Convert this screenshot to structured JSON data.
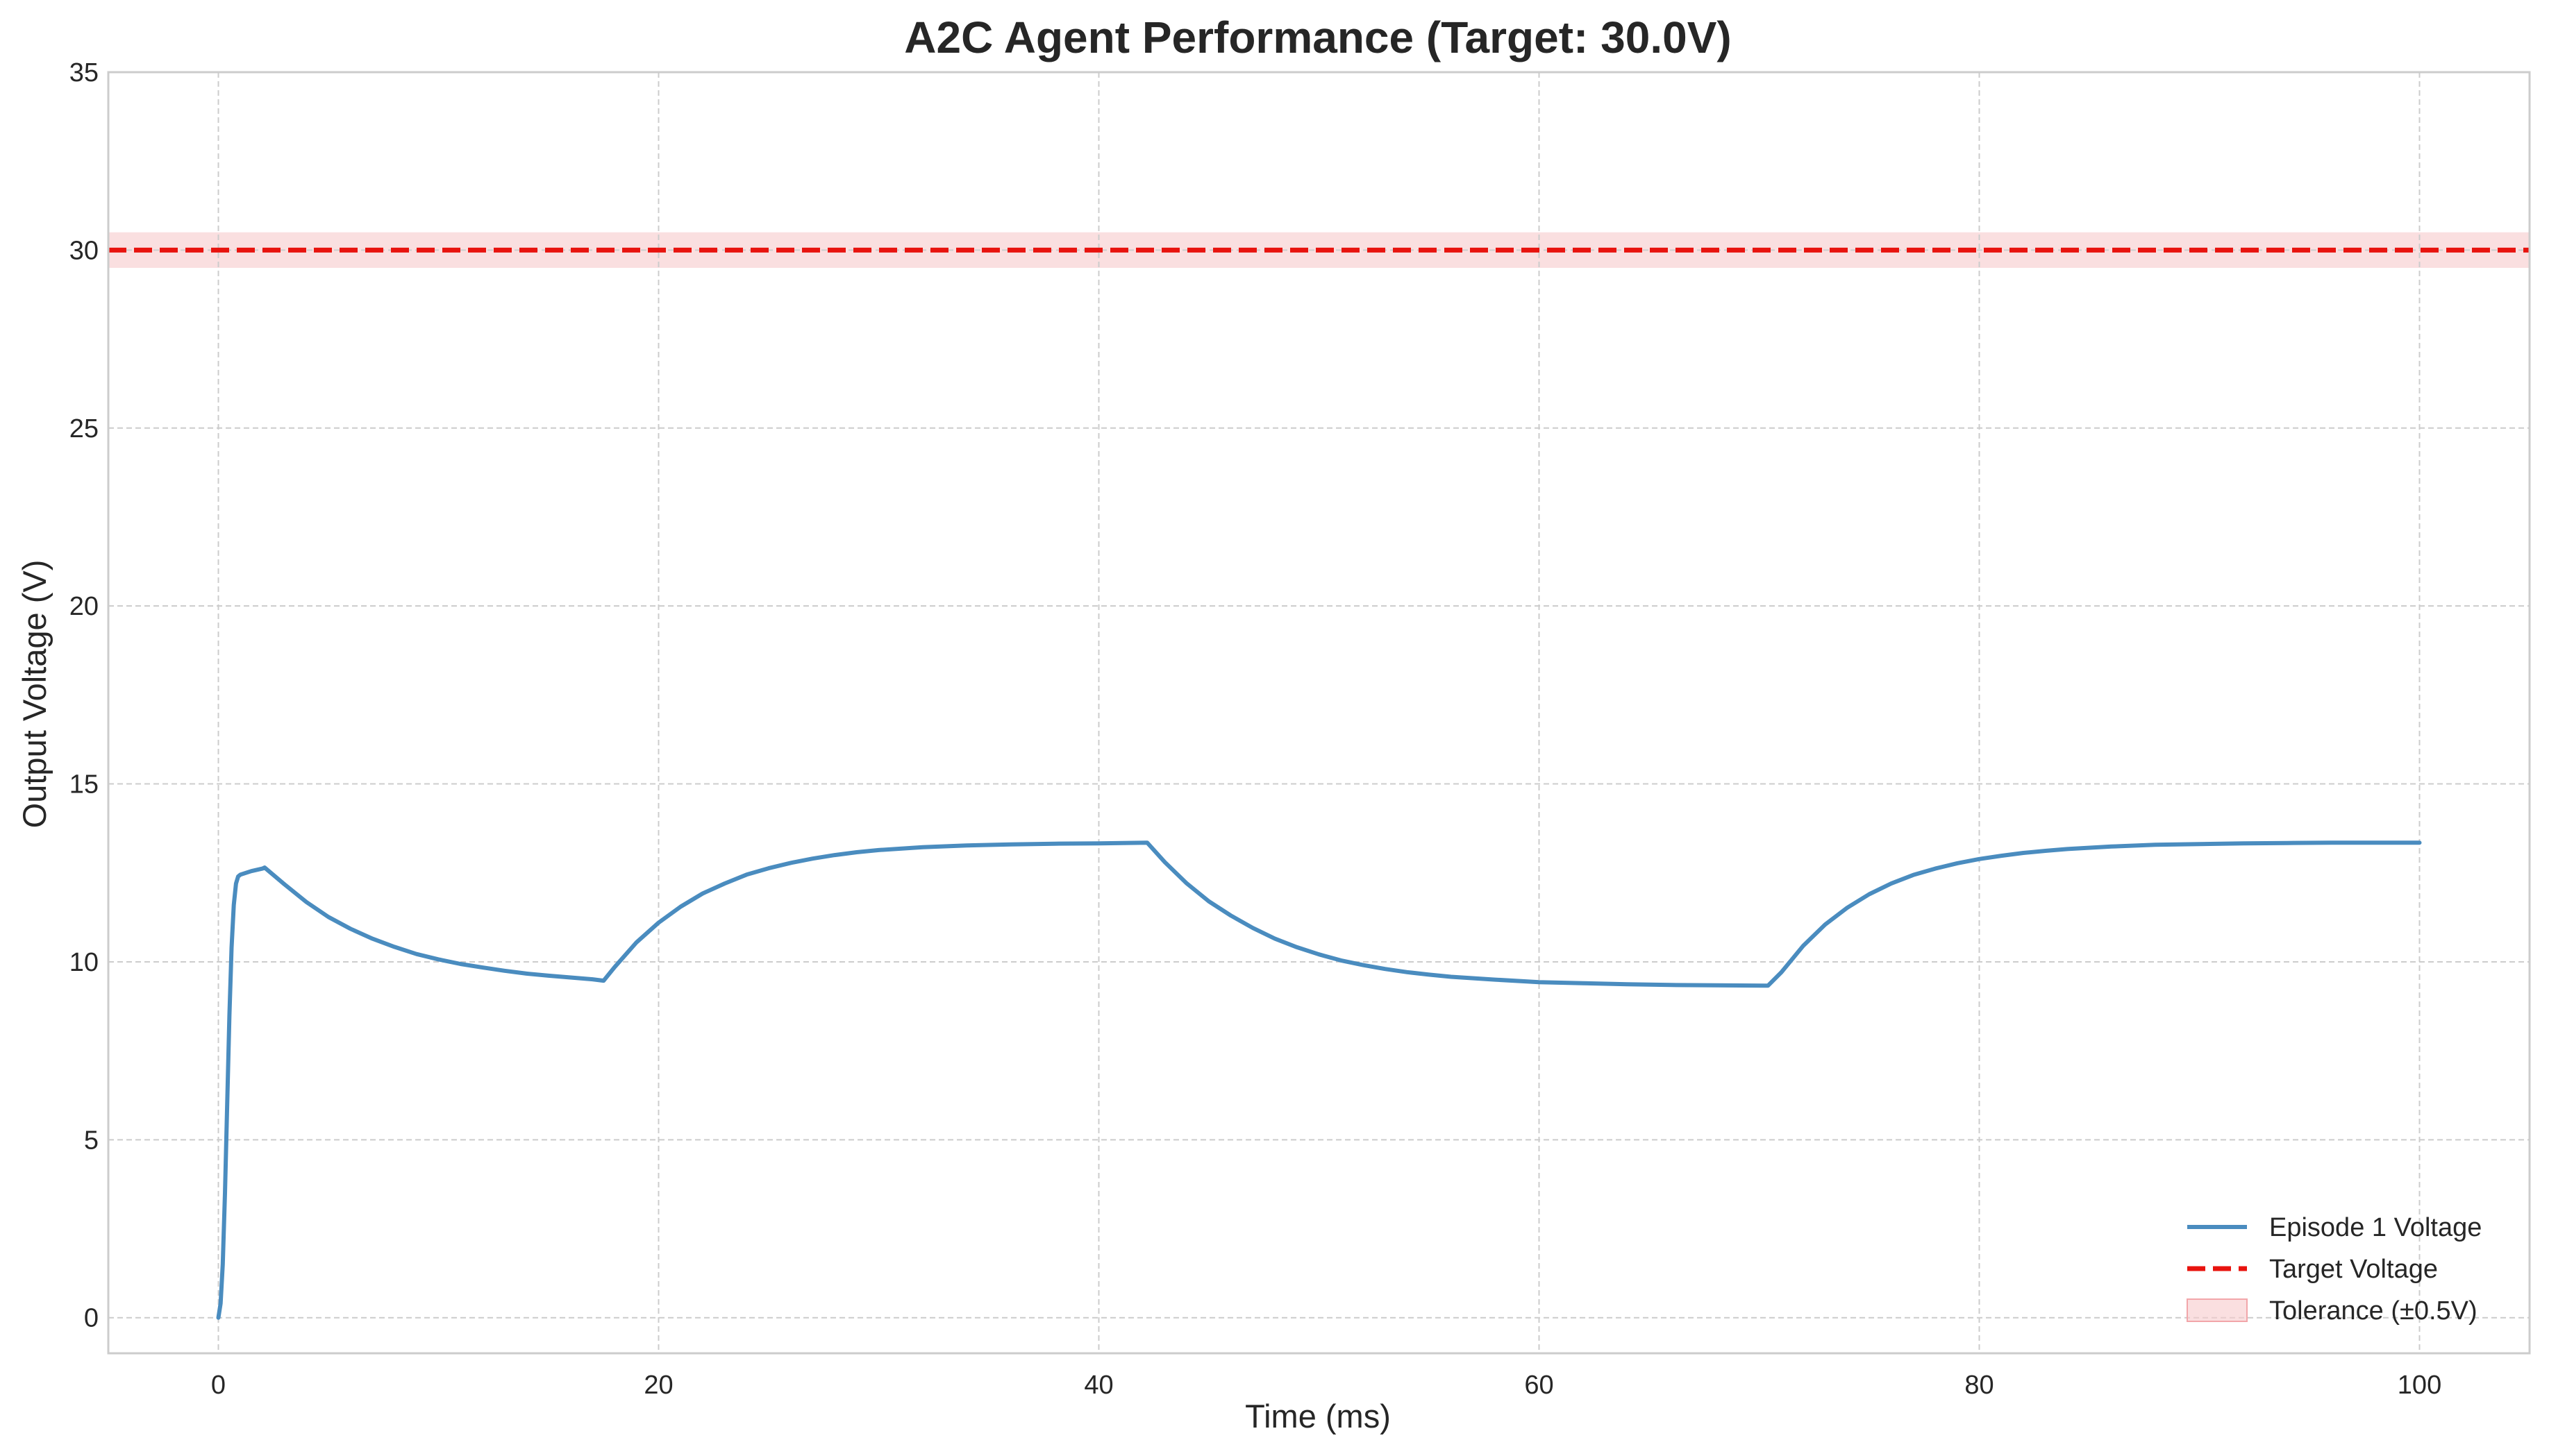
{
  "chart_data": {
    "type": "line",
    "title": "A2C Agent Performance (Target: 30.0V)",
    "xlabel": "Time (ms)",
    "ylabel": "Output Voltage (V)",
    "xlim": [
      -5,
      105
    ],
    "ylim": [
      -1,
      35
    ],
    "x_ticks": [
      0,
      20,
      40,
      60,
      80,
      100
    ],
    "y_ticks": [
      0,
      5,
      10,
      15,
      20,
      25,
      30,
      35
    ],
    "x_tick_labels": [
      "0",
      "20",
      "40",
      "60",
      "80",
      "100"
    ],
    "y_tick_labels": [
      "0",
      "5",
      "10",
      "15",
      "20",
      "25",
      "30",
      "35"
    ],
    "grid": true,
    "legend_position": "lower-right",
    "series": [
      {
        "name": "Episode 1 Voltage",
        "color": "#4a8cbf",
        "style": "solid",
        "x": [
          0,
          0.1,
          0.2,
          0.3,
          0.4,
          0.5,
          0.6,
          0.7,
          0.8,
          0.9,
          1.0,
          1.5,
          2.0,
          2.1,
          3,
          4,
          5,
          6,
          7,
          8,
          9,
          10,
          11,
          12,
          13,
          14,
          15,
          16,
          17,
          17.5,
          18,
          19,
          20,
          21,
          22,
          23,
          24,
          25,
          26,
          27,
          28,
          29,
          30,
          32,
          34,
          36,
          38,
          40,
          42.2,
          43,
          44,
          45,
          46,
          47,
          48,
          49,
          50,
          51,
          52,
          53,
          54,
          55,
          56,
          58,
          60,
          62,
          64,
          66,
          68,
          70.4,
          71,
          72,
          73,
          74,
          75,
          76,
          77,
          78,
          79,
          80,
          81,
          82,
          83,
          84,
          86,
          88,
          90,
          92,
          94,
          96,
          98,
          100
        ],
        "y": [
          0,
          0.4,
          1.5,
          3.5,
          6.0,
          8.5,
          10.4,
          11.6,
          12.2,
          12.4,
          12.45,
          12.55,
          12.62,
          12.65,
          12.18,
          11.68,
          11.26,
          10.93,
          10.65,
          10.42,
          10.22,
          10.07,
          9.94,
          9.84,
          9.75,
          9.67,
          9.61,
          9.56,
          9.51,
          9.47,
          9.85,
          10.55,
          11.1,
          11.55,
          11.92,
          12.2,
          12.45,
          12.63,
          12.78,
          12.9,
          13.0,
          13.08,
          13.14,
          13.22,
          13.27,
          13.3,
          13.32,
          13.33,
          13.35,
          12.8,
          12.2,
          11.7,
          11.3,
          10.95,
          10.65,
          10.41,
          10.21,
          10.04,
          9.91,
          9.8,
          9.71,
          9.64,
          9.58,
          9.5,
          9.43,
          9.4,
          9.37,
          9.35,
          9.34,
          9.33,
          9.7,
          10.45,
          11.05,
          11.52,
          11.9,
          12.2,
          12.44,
          12.62,
          12.77,
          12.89,
          12.98,
          13.06,
          13.12,
          13.17,
          13.24,
          13.29,
          13.31,
          13.33,
          13.34,
          13.35,
          13.35,
          13.35
        ]
      },
      {
        "name": "Target Voltage",
        "color": "#e8130e",
        "style": "dashed",
        "y_constant": 30.0
      }
    ],
    "bands": [
      {
        "name": "Tolerance (±0.5V)",
        "color": "#f7c9cb",
        "y_range": [
          29.5,
          30.5
        ]
      }
    ]
  }
}
